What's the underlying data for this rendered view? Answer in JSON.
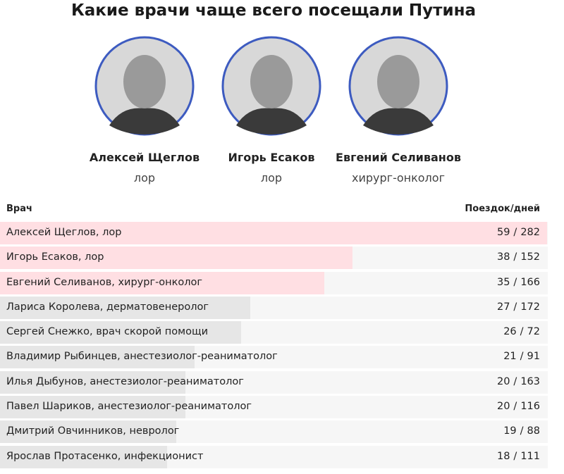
{
  "header": {
    "title": "Какие врачи чаще всего посещали Путина"
  },
  "people": [
    {
      "name": "Алексей Щеглов",
      "role": "лор"
    },
    {
      "name": "Игорь Есаков",
      "role": "лор"
    },
    {
      "name": "Евгений Селиванов",
      "role": "хирург-онколог"
    }
  ],
  "table": {
    "columns": [
      "Врач",
      "Поездок/дней"
    ],
    "separator": "/",
    "bar_color": "#e6e6e6",
    "highlight_color": "#ffdfe3",
    "rows": [
      {
        "label": "Алексей Щеглов, лор",
        "trips": 59,
        "days": 282,
        "highlighted": true
      },
      {
        "label": "Игорь Есаков, лор",
        "trips": 38,
        "days": 152,
        "highlighted": true
      },
      {
        "label": "Евгений Селиванов, хирург-онколог",
        "trips": 35,
        "days": 166,
        "highlighted": true
      },
      {
        "label": "Лариса Королева, дерматовенеролог",
        "trips": 27,
        "days": 172,
        "highlighted": false
      },
      {
        "label": "Сергей Снежко, врач скорой помощи",
        "trips": 26,
        "days": 72,
        "highlighted": false
      },
      {
        "label": "Владимир Рыбинцев, анестезиолог-реаниматолог",
        "trips": 21,
        "days": 91,
        "highlighted": false
      },
      {
        "label": "Илья Дыбунов, анестезиолог-реаниматолог",
        "trips": 20,
        "days": 163,
        "highlighted": false
      },
      {
        "label": "Павел Шариков, анестезиолог-реаниматолог",
        "trips": 20,
        "days": 116,
        "highlighted": false
      },
      {
        "label": "Дмитрий Овчинников, невролог",
        "trips": 19,
        "days": 88,
        "highlighted": false
      },
      {
        "label": "Ярослав Протасенко, инфекционист",
        "trips": 18,
        "days": 111,
        "highlighted": false
      }
    ]
  }
}
